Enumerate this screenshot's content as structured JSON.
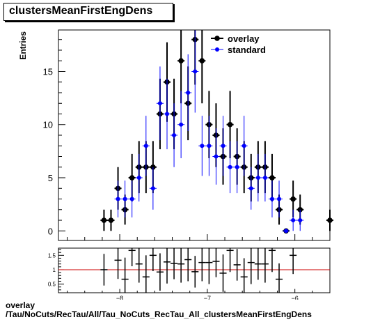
{
  "title": "clustersMeanFirstEngDens",
  "footer": {
    "line1": "overlay",
    "line2": "/Tau/NoCuts/RecTau/All/Tau_NoCuts_RecTau_All_clustersMeanFirstEngDens"
  },
  "colors": {
    "overlay": "#000000",
    "standard": "#0000ff",
    "ratio_line": "#cc0000"
  },
  "chart_data": [
    {
      "type": "scatter",
      "ylabel": "Entries",
      "xlim": [
        -8.7,
        -5.6
      ],
      "ylim": [
        -0.9,
        18.9
      ],
      "yticks": [
        0,
        5,
        10,
        15
      ],
      "xticks": [
        -8,
        -7,
        -6
      ],
      "legend_position": "top-right",
      "series": [
        {
          "name": "overlay",
          "x": [
            -8.18,
            -8.1,
            -8.02,
            -7.94,
            -7.86,
            -7.78,
            -7.7,
            -7.62,
            -7.54,
            -7.46,
            -7.38,
            -7.3,
            -7.22,
            -7.14,
            -7.06,
            -6.98,
            -6.9,
            -6.82,
            -6.74,
            -6.66,
            -6.58,
            -6.5,
            -6.42,
            -6.34,
            -6.26,
            -6.18,
            -6.1,
            -6.02,
            -5.94,
            -5.6
          ],
          "y": [
            1,
            1,
            4,
            2,
            5,
            6,
            6,
            6,
            11,
            14,
            11,
            16,
            12,
            18,
            16,
            10,
            9,
            7,
            10,
            7,
            6,
            5,
            6,
            6,
            5,
            2,
            0,
            3,
            2,
            1
          ]
        },
        {
          "name": "standard",
          "x": [
            -8.02,
            -7.94,
            -7.86,
            -7.78,
            -7.7,
            -7.62,
            -7.54,
            -7.46,
            -7.38,
            -7.3,
            -7.22,
            -7.14,
            -7.06,
            -6.98,
            -6.9,
            -6.82,
            -6.74,
            -6.66,
            -6.58,
            -6.5,
            -6.42,
            -6.34,
            -6.26,
            -6.18,
            -6.1,
            -6.02,
            -5.94
          ],
          "y": [
            3,
            3,
            3,
            5,
            8,
            4,
            12,
            11,
            9,
            10,
            13,
            15,
            8,
            8,
            7,
            8,
            6,
            6,
            8,
            4,
            5,
            5,
            3,
            3,
            0,
            1,
            1
          ]
        }
      ]
    },
    {
      "type": "scatter",
      "xlabel": "clustersMeanFirstEngDens",
      "ylim": [
        0.2,
        1.75
      ],
      "yticks": [
        0.5,
        1,
        1.5
      ],
      "xticks": [
        -8,
        -7,
        -6
      ],
      "reference_line": 1,
      "series": [
        {
          "name": "ratio",
          "x": [
            -8.18,
            -8.02,
            -7.94,
            -7.86,
            -7.78,
            -7.7,
            -7.62,
            -7.54,
            -7.46,
            -7.38,
            -7.3,
            -7.22,
            -7.14,
            -7.06,
            -6.98,
            -6.9,
            -6.82,
            -6.74,
            -6.66,
            -6.58,
            -6.5,
            -6.42,
            -6.34,
            -6.26,
            -6.18,
            -6.02
          ],
          "y": [
            1.0,
            1.33,
            0.67,
            1.67,
            1.2,
            0.75,
            1.5,
            0.92,
            1.27,
            1.22,
            1.2,
            1.35,
            0.93,
            1.25,
            1.25,
            1.29,
            0.88,
            1.67,
            1.17,
            0.75,
            1.25,
            1.2,
            1.2,
            1.67,
            0.67,
            1.5
          ]
        }
      ]
    }
  ]
}
